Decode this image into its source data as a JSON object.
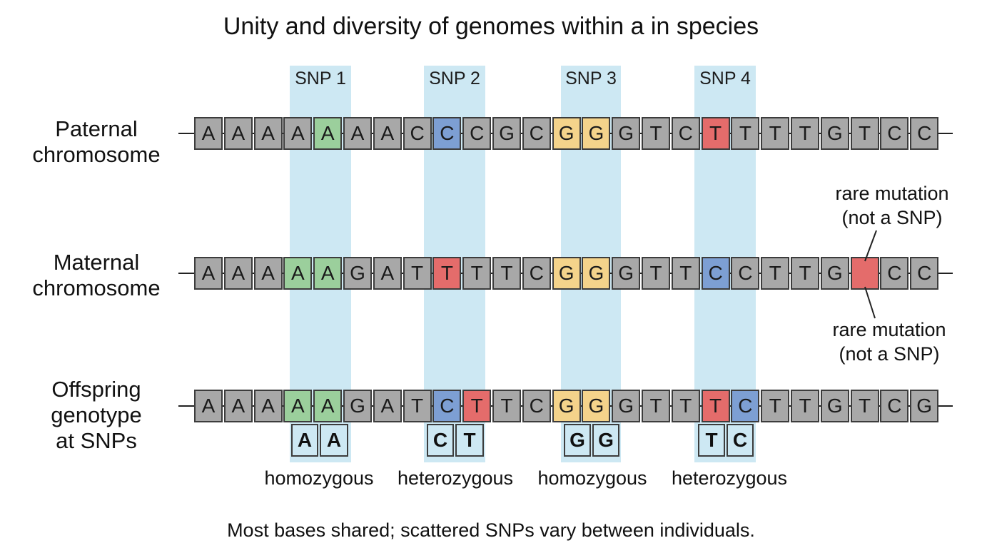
{
  "title": "Unity and diversity of genomes within a in species",
  "snp_labels": [
    "SNP 1",
    "SNP 2",
    "SNP 3",
    "SNP 4"
  ],
  "colors": {
    "band": "#cde8f3",
    "gray": "#a8a8a8",
    "green": "#9bcf9c",
    "blue": "#7d9fd3",
    "yellow": "#f4d38b",
    "red": "#e46c6b"
  },
  "rows": [
    {
      "label_lines": [
        "Paternal",
        "chromosome"
      ],
      "bases": [
        "A",
        "A",
        "A",
        "A",
        "A",
        "A",
        "A",
        "C",
        "C",
        "C",
        "G",
        "C",
        "G",
        "G",
        "G",
        "T",
        "C",
        "T",
        "T",
        "T",
        "T",
        "G",
        "T",
        "C",
        "C"
      ],
      "colors": [
        "gray",
        "gray",
        "gray",
        "gray",
        "green",
        "gray",
        "gray",
        "gray",
        "blue",
        "gray",
        "gray",
        "gray",
        "yellow",
        "yellow",
        "gray",
        "gray",
        "gray",
        "red",
        "gray",
        "gray",
        "gray",
        "gray",
        "gray",
        "gray",
        "gray"
      ]
    },
    {
      "label_lines": [
        "Maternal",
        "chromosome"
      ],
      "bases": [
        "A",
        "A",
        "A",
        "A",
        "A",
        "G",
        "A",
        "T",
        "T",
        "T",
        "T",
        "C",
        "G",
        "G",
        "G",
        "T",
        "T",
        "C",
        "C",
        "T",
        "T",
        "G",
        "",
        "C",
        "C"
      ],
      "colors": [
        "gray",
        "gray",
        "gray",
        "green",
        "green",
        "gray",
        "gray",
        "gray",
        "red",
        "gray",
        "gray",
        "gray",
        "yellow",
        "yellow",
        "gray",
        "gray",
        "gray",
        "blue",
        "gray",
        "gray",
        "gray",
        "gray",
        "red",
        "gray",
        "gray"
      ]
    },
    {
      "label_lines": [
        "Offspring",
        "genotype",
        "at SNPs"
      ],
      "bases": [
        "A",
        "A",
        "A",
        "A",
        "A",
        "G",
        "A",
        "T",
        "C",
        "T",
        "T",
        "C",
        "G",
        "G",
        "G",
        "T",
        "T",
        "T",
        "C",
        "T",
        "T",
        "G",
        "T",
        "C",
        "G"
      ],
      "colors": [
        "gray",
        "gray",
        "gray",
        "green",
        "green",
        "gray",
        "gray",
        "gray",
        "blue",
        "red",
        "gray",
        "gray",
        "yellow",
        "yellow",
        "gray",
        "gray",
        "gray",
        "red",
        "blue",
        "gray",
        "gray",
        "gray",
        "gray",
        "gray",
        "gray"
      ]
    }
  ],
  "genotypes": [
    {
      "alleles": [
        "A",
        "A"
      ],
      "colors": [
        "green",
        "green"
      ],
      "zygosity": "homozygous"
    },
    {
      "alleles": [
        "C",
        "T"
      ],
      "colors": [
        "blue",
        "red"
      ],
      "zygosity": "heterozygous"
    },
    {
      "alleles": [
        "G",
        "G"
      ],
      "colors": [
        "yellow",
        "yellow"
      ],
      "zygosity": "homozygous"
    },
    {
      "alleles": [
        "T",
        "C"
      ],
      "colors": [
        "red",
        "blue"
      ],
      "zygosity": "heterozygous"
    }
  ],
  "annotations": {
    "rare_top": [
      "rare mutation",
      "(not a SNP)"
    ],
    "rare_bottom": [
      "rare mutation",
      "(not a SNP)"
    ]
  },
  "caption": "Most bases shared; scattered SNPs vary between individuals."
}
